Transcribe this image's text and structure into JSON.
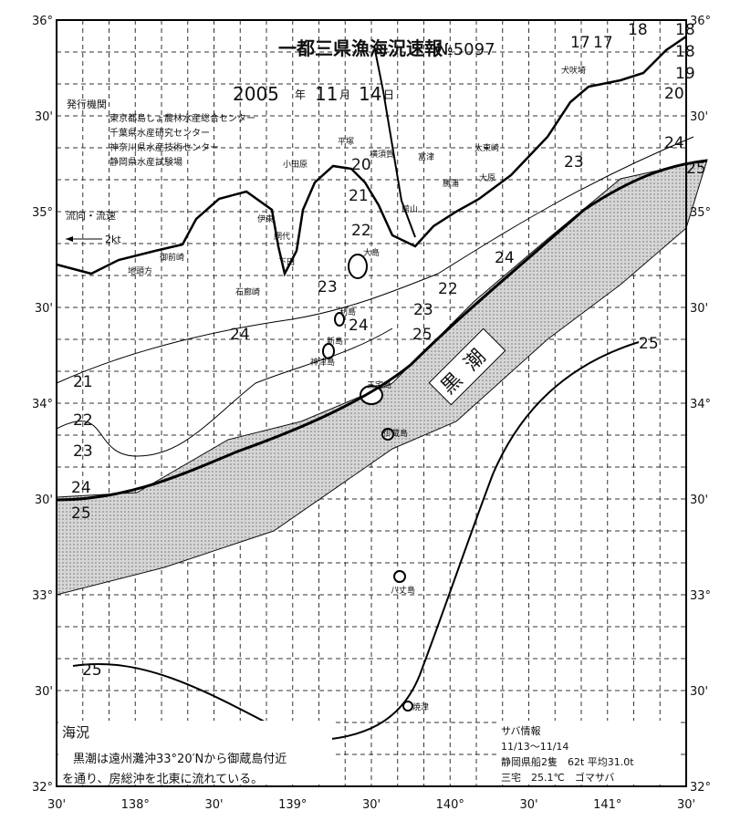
{
  "header": {
    "title": "一都三県漁海況速報",
    "number": "№5097",
    "date": {
      "year": "2005",
      "year_unit": "年",
      "month": "11",
      "month_unit": "月",
      "day": "14",
      "day_unit": "日"
    }
  },
  "issuers": {
    "heading": "発行機関",
    "organizations": [
      "東京都島しょ農林水産総合センター",
      "千葉県水産研究センター",
      "神奈川県水産技術センター",
      "静岡県水産試験場"
    ]
  },
  "flow_legend": {
    "label": "流向・流速",
    "speed": "2kt"
  },
  "latitude_labels": [
    "36°",
    "30'",
    "35°",
    "30'",
    "34°",
    "30'",
    "33°",
    "30'",
    "32°"
  ],
  "longitude_labels": [
    "30'",
    "138°",
    "30'",
    "139°",
    "30'",
    "140°",
    "30'",
    "141°",
    "30'"
  ],
  "current_label": "黒潮",
  "isotherm_labels": [
    "17",
    "17",
    "18",
    "18",
    "18",
    "19",
    "20",
    "24",
    "23",
    "25",
    "20",
    "21",
    "22",
    "23",
    "22",
    "23",
    "24",
    "24",
    "24",
    "25",
    "21",
    "22",
    "23",
    "24",
    "25",
    "25",
    "25"
  ],
  "place_names": [
    "平塚",
    "小田原",
    "横須賀",
    "富津",
    "館山",
    "大原",
    "太東崎",
    "勝浦",
    "犬吠埼",
    "伊東",
    "網代",
    "下田",
    "石廊崎",
    "御前崎",
    "地頭方",
    "大島",
    "利島",
    "新島",
    "神津島",
    "三宅島",
    "御蔵島",
    "八丈島",
    "焼津"
  ],
  "sea_conditions": {
    "heading": "海況",
    "text": [
      "黒潮は遠州灘沖33°20′Nから御蔵島付近",
      "を通り、房総沖を北東に流れている。"
    ]
  },
  "mackerel_info": {
    "heading": "サバ情報",
    "period": "11/13～11/14",
    "lines": [
      "静岡県船2隻　62t 平均31.0t",
      "三宅　25.1℃　ゴマサバ"
    ]
  }
}
